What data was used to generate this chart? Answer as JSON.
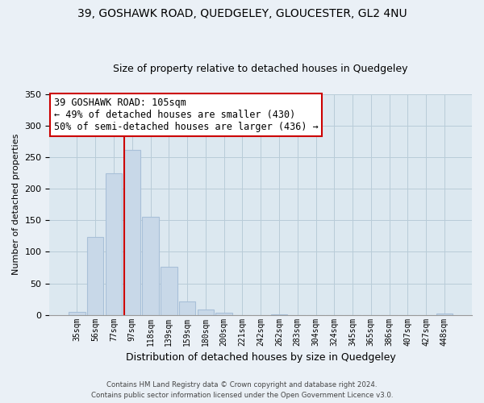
{
  "title": "39, GOSHAWK ROAD, QUEDGELEY, GLOUCESTER, GL2 4NU",
  "subtitle": "Size of property relative to detached houses in Quedgeley",
  "xlabel": "Distribution of detached houses by size in Quedgeley",
  "ylabel": "Number of detached properties",
  "bar_labels": [
    "35sqm",
    "56sqm",
    "77sqm",
    "97sqm",
    "118sqm",
    "139sqm",
    "159sqm",
    "180sqm",
    "200sqm",
    "221sqm",
    "242sqm",
    "262sqm",
    "283sqm",
    "304sqm",
    "324sqm",
    "345sqm",
    "365sqm",
    "386sqm",
    "407sqm",
    "427sqm",
    "448sqm"
  ],
  "bar_values": [
    5,
    124,
    225,
    262,
    155,
    76,
    21,
    9,
    3,
    0,
    0,
    1,
    0,
    0,
    0,
    0,
    0,
    0,
    0,
    0,
    2
  ],
  "bar_color": "#c8d8e8",
  "bar_edge_color": "#a8c0d8",
  "vline_x": 3.0,
  "vline_color": "#cc0000",
  "ylim": [
    0,
    350
  ],
  "yticks": [
    0,
    50,
    100,
    150,
    200,
    250,
    300,
    350
  ],
  "annotation_title": "39 GOSHAWK ROAD: 105sqm",
  "annotation_line1": "← 49% of detached houses are smaller (430)",
  "annotation_line2": "50% of semi-detached houses are larger (436) →",
  "annotation_box_color": "#ffffff",
  "annotation_box_edge": "#cc0000",
  "footnote1": "Contains HM Land Registry data © Crown copyright and database right 2024.",
  "footnote2": "Contains public sector information licensed under the Open Government Licence v3.0.",
  "background_color": "#eaf0f6",
  "plot_bg_color": "#dce8f0",
  "grid_color": "#b8ccd8",
  "title_fontsize": 10,
  "subtitle_fontsize": 9
}
